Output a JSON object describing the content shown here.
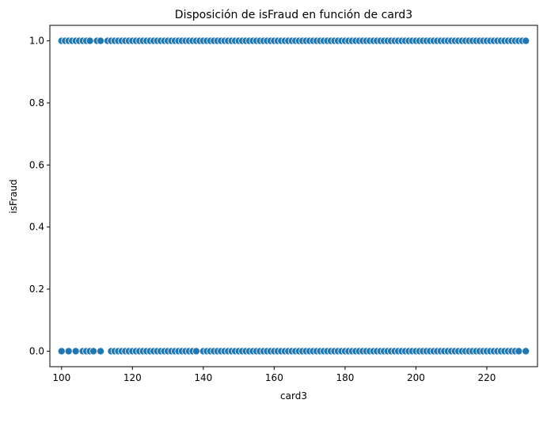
{
  "chart_data": {
    "type": "scatter",
    "title": "Disposición de isFraud en función de card3",
    "xlabel": "card3",
    "ylabel": "isFraud",
    "xlim": [
      96.7,
      234.3
    ],
    "ylim": [
      -0.05,
      1.05
    ],
    "x_ticks": [
      100,
      120,
      140,
      160,
      180,
      200,
      220
    ],
    "y_ticks": [
      0.0,
      0.2,
      0.4,
      0.6,
      0.8,
      1.0
    ],
    "x_tick_labels": [
      "100",
      "120",
      "140",
      "160",
      "180",
      "200",
      "220"
    ],
    "y_tick_labels": [
      "0.0",
      "0.2",
      "0.4",
      "0.6",
      "0.8",
      "1.0"
    ],
    "grid": false,
    "marker_color": "#1f77b4",
    "marker_edge_color": "#ffffff",
    "series": [
      {
        "y": 1.0,
        "x": [
          100,
          101,
          102,
          103,
          104,
          105,
          106,
          107,
          108,
          110,
          111,
          113,
          114,
          115,
          116,
          117,
          118,
          119,
          120,
          121,
          122,
          123,
          124,
          125,
          126,
          127,
          128,
          129,
          130,
          131,
          132,
          133,
          134,
          135,
          136,
          137,
          138,
          139,
          140,
          141,
          142,
          143,
          144,
          145,
          146,
          147,
          148,
          149,
          150,
          151,
          152,
          153,
          154,
          155,
          156,
          157,
          158,
          159,
          160,
          161,
          162,
          163,
          164,
          165,
          166,
          167,
          168,
          169,
          170,
          171,
          172,
          173,
          174,
          175,
          176,
          177,
          178,
          179,
          180,
          181,
          182,
          183,
          184,
          185,
          186,
          187,
          188,
          189,
          190,
          191,
          192,
          193,
          194,
          195,
          196,
          197,
          198,
          199,
          200,
          201,
          202,
          203,
          204,
          205,
          206,
          207,
          208,
          209,
          210,
          211,
          212,
          213,
          214,
          215,
          216,
          217,
          218,
          219,
          220,
          221,
          222,
          223,
          224,
          225,
          226,
          227,
          228,
          229,
          230,
          231
        ]
      },
      {
        "y": 0.0,
        "x": [
          100,
          102,
          104,
          106,
          107,
          108,
          109,
          111,
          114,
          115,
          116,
          117,
          118,
          119,
          120,
          121,
          122,
          123,
          124,
          125,
          126,
          127,
          128,
          129,
          130,
          131,
          132,
          133,
          134,
          135,
          136,
          137,
          138,
          140,
          141,
          142,
          143,
          144,
          145,
          146,
          147,
          148,
          149,
          150,
          151,
          152,
          153,
          154,
          155,
          156,
          157,
          158,
          159,
          160,
          161,
          162,
          163,
          164,
          165,
          166,
          167,
          168,
          169,
          170,
          171,
          172,
          173,
          174,
          175,
          176,
          177,
          178,
          179,
          180,
          181,
          182,
          183,
          184,
          185,
          186,
          187,
          188,
          189,
          190,
          191,
          192,
          193,
          194,
          195,
          196,
          197,
          198,
          199,
          200,
          201,
          202,
          203,
          204,
          205,
          206,
          207,
          208,
          209,
          210,
          211,
          212,
          213,
          214,
          215,
          216,
          217,
          218,
          219,
          220,
          221,
          222,
          223,
          224,
          225,
          226,
          227,
          228,
          229,
          231
        ]
      }
    ]
  }
}
